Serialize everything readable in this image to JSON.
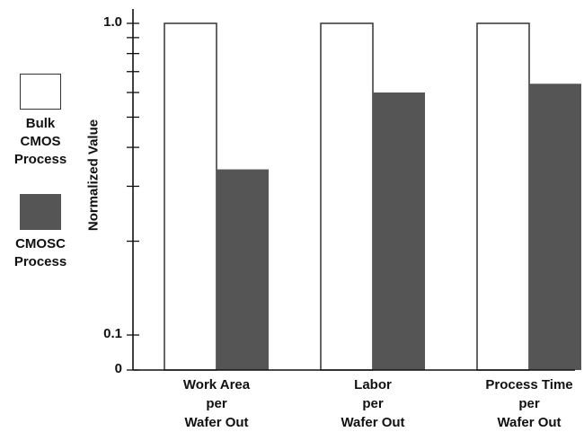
{
  "chart_data": {
    "type": "bar",
    "ylabel": "Normalized Value",
    "categories": [
      "Work Area\nper\nWafer Out",
      "Labor\nper\nWafer Out",
      "Process Time\nper\nWafer Out"
    ],
    "series": [
      {
        "name": "Bulk\nCMOS\nProcess",
        "color": "#ffffff",
        "values": [
          1.0,
          1.0,
          1.0
        ]
      },
      {
        "name": "CMOSC\nProcess",
        "color": "#555555",
        "values": [
          0.34,
          0.6,
          0.64
        ]
      }
    ],
    "yticks": [
      {
        "value": 1.0,
        "label": "1.0"
      },
      {
        "value": 0.1,
        "label": "0.1"
      },
      {
        "value": 0,
        "label": "0"
      }
    ],
    "ylim": [
      0,
      1.0
    ],
    "grid": false,
    "legend_position": "left"
  }
}
